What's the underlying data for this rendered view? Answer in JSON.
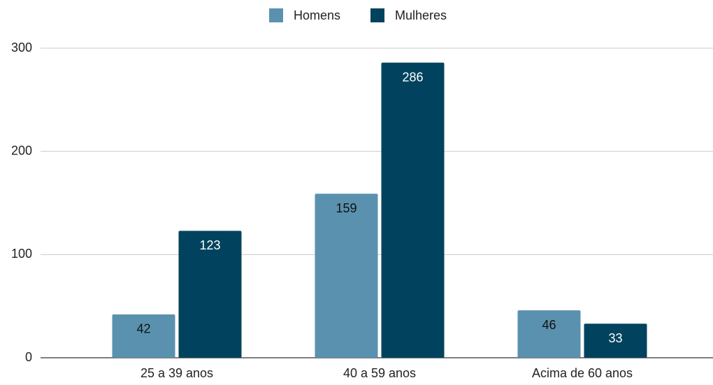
{
  "chart_data": {
    "type": "bar",
    "categories": [
      "25 a 39 anos",
      "40 a 59 anos",
      "Acima de 60 anos"
    ],
    "series": [
      {
        "name": "Homens",
        "color": "#5a91af",
        "values": [
          42,
          159,
          46
        ]
      },
      {
        "name": "Mulheres",
        "color": "#01435e",
        "values": [
          123,
          286,
          33
        ]
      }
    ],
    "ylim": [
      0,
      300
    ],
    "yticks": [
      0,
      100,
      200,
      300
    ],
    "grid": true,
    "legend": "top"
  }
}
